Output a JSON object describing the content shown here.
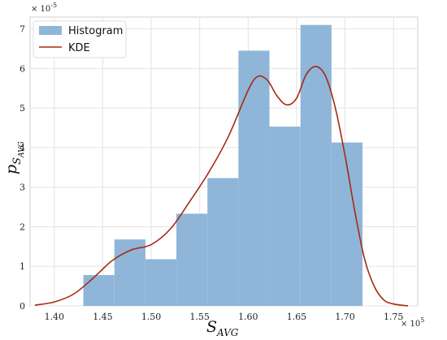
{
  "chart_data": {
    "type": "bar",
    "title": "",
    "xlabel": "S",
    "xlabel_sub": "AVG",
    "ylabel": "p",
    "ylabel_sub": "S",
    "ylabel_subsub": "AVG",
    "x_multiplier_base": "× 10",
    "x_multiplier_exp": "5",
    "y_multiplier_base": "× 10",
    "y_multiplier_exp": "-5",
    "xlim": [
      1.375,
      1.775
    ],
    "ylim": [
      0,
      7.3
    ],
    "x_ticks": [
      1.4,
      1.45,
      1.5,
      1.55,
      1.6,
      1.65,
      1.7,
      1.75
    ],
    "x_tick_labels": [
      "1.40",
      "1.45",
      "1.50",
      "1.55",
      "1.60",
      "1.65",
      "1.70",
      "1.75"
    ],
    "y_ticks": [
      0,
      1,
      2,
      3,
      4,
      5,
      6,
      7
    ],
    "y_tick_labels": [
      "0",
      "1",
      "2",
      "3",
      "4",
      "5",
      "6",
      "7"
    ],
    "grid": true,
    "legend_position": "top-left",
    "series": [
      {
        "name": "Histogram",
        "kind": "histogram",
        "color": "#8fb6d9",
        "bins": [
          {
            "x0": 1.43,
            "x1": 1.462,
            "value": 0.78
          },
          {
            "x0": 1.462,
            "x1": 1.494,
            "value": 1.68
          },
          {
            "x0": 1.494,
            "x1": 1.526,
            "value": 1.18
          },
          {
            "x0": 1.526,
            "x1": 1.558,
            "value": 2.33
          },
          {
            "x0": 1.558,
            "x1": 1.59,
            "value": 3.23
          },
          {
            "x0": 1.59,
            "x1": 1.622,
            "value": 6.45
          },
          {
            "x0": 1.622,
            "x1": 1.654,
            "value": 4.53
          },
          {
            "x0": 1.654,
            "x1": 1.686,
            "value": 7.1
          },
          {
            "x0": 1.686,
            "x1": 1.718,
            "value": 4.13
          }
        ]
      },
      {
        "name": "KDE",
        "kind": "line",
        "color": "#a52a12",
        "x": [
          1.38,
          1.4,
          1.42,
          1.44,
          1.46,
          1.48,
          1.5,
          1.52,
          1.54,
          1.56,
          1.58,
          1.6,
          1.61,
          1.62,
          1.63,
          1.64,
          1.65,
          1.66,
          1.67,
          1.68,
          1.69,
          1.7,
          1.71,
          1.72,
          1.73,
          1.74,
          1.75,
          1.765
        ],
        "y": [
          0.02,
          0.1,
          0.3,
          0.7,
          1.15,
          1.42,
          1.55,
          1.95,
          2.65,
          3.4,
          4.3,
          5.45,
          5.8,
          5.7,
          5.3,
          5.08,
          5.25,
          5.85,
          6.05,
          5.8,
          5.0,
          3.8,
          2.4,
          1.2,
          0.5,
          0.15,
          0.05,
          0.0
        ]
      }
    ]
  }
}
